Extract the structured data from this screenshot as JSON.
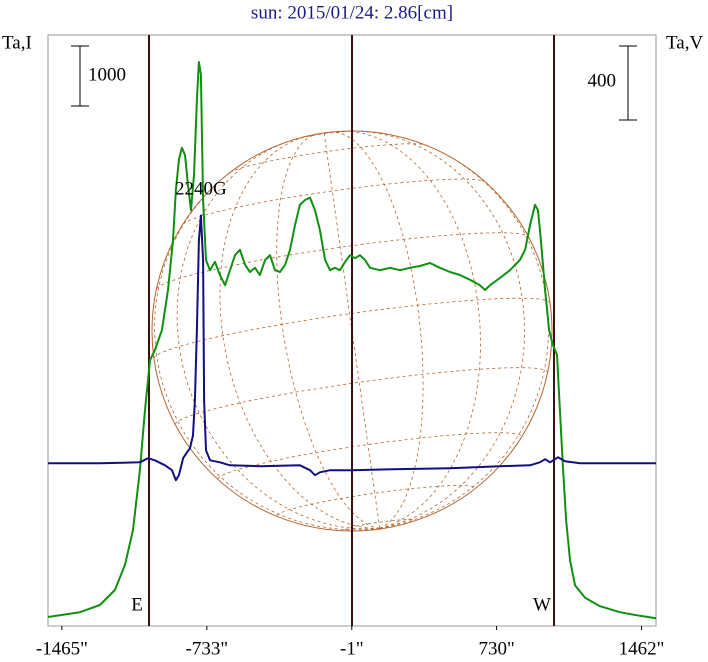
{
  "chart_data": {
    "type": "line",
    "title": "sun: 2015/01/24: 2.86[cm]",
    "y_label": "Ta,I",
    "y2_label": "Ta,V",
    "xlim": [
      -1535,
      1535
    ],
    "xticks": [
      {
        "value": -1465,
        "label": "-1465\""
      },
      {
        "value": -733,
        "label": "-733\""
      },
      {
        "value": -1,
        "label": "-1\""
      },
      {
        "value": 730,
        "label": "730\""
      },
      {
        "value": 1462,
        "label": "1462\""
      }
    ],
    "ylim": [
      0,
      9850
    ],
    "y2lim": [
      -880,
      2315
    ],
    "scale_bars": [
      {
        "value": 1000,
        "axis": "y"
      },
      {
        "value": 400,
        "axis": "y2"
      }
    ],
    "limb_markers": [
      {
        "x": -1025,
        "label": "E"
      },
      {
        "x": 0
      },
      {
        "x": 1020,
        "label": "W"
      }
    ],
    "annotations": [
      {
        "text": "2240G",
        "x": -763
      }
    ],
    "series": [
      {
        "color": "#109010",
        "axis": "y",
        "x": [
          -1535,
          -1374,
          -1273,
          -1197,
          -1146,
          -1106,
          -1071,
          -1045,
          -1020,
          -995,
          -960,
          -929,
          -904,
          -889,
          -874,
          -859,
          -843,
          -828,
          -813,
          -798,
          -783,
          -773,
          -763,
          -752,
          -737,
          -717,
          -692,
          -667,
          -641,
          -616,
          -591,
          -566,
          -540,
          -515,
          -490,
          -465,
          -439,
          -414,
          -389,
          -364,
          -338,
          -313,
          -288,
          -263,
          -237,
          -212,
          -187,
          -162,
          -136,
          -111,
          -86,
          -61,
          -35,
          -10,
          15,
          40,
          66,
          91,
          141,
          192,
          242,
          293,
          343,
          394,
          444,
          495,
          545,
          596,
          646,
          672,
          697,
          747,
          798,
          848,
          874,
          899,
          924,
          939,
          954,
          975,
          995,
          1015,
          1035,
          1050,
          1066,
          1081,
          1101,
          1126,
          1177,
          1252,
          1353,
          1454,
          1535
        ],
        "values": [
          150,
          230,
          350,
          600,
          1020,
          1600,
          2600,
          3600,
          4430,
          4600,
          4930,
          5600,
          6430,
          7270,
          7770,
          7970,
          7850,
          7350,
          6930,
          7520,
          8770,
          9400,
          9190,
          7100,
          6100,
          5930,
          6070,
          5850,
          5680,
          5930,
          6180,
          6270,
          6020,
          5900,
          5970,
          5850,
          6100,
          6180,
          5930,
          5900,
          6020,
          6270,
          6680,
          7020,
          7100,
          7140,
          6930,
          6600,
          6100,
          5930,
          5970,
          5930,
          6070,
          6180,
          6130,
          6180,
          6100,
          5970,
          5930,
          5970,
          5930,
          5970,
          6000,
          6050,
          5970,
          5900,
          5850,
          5770,
          5680,
          5600,
          5680,
          5800,
          5930,
          6100,
          6270,
          6680,
          7020,
          6930,
          6430,
          5600,
          4930,
          4680,
          4520,
          3600,
          2600,
          1770,
          1100,
          680,
          470,
          330,
          230,
          170,
          130
        ]
      },
      {
        "color": "#101080",
        "axis": "y2",
        "x": [
          -1535,
          -1273,
          -1071,
          -1030,
          -995,
          -944,
          -909,
          -889,
          -874,
          -853,
          -833,
          -818,
          -803,
          -793,
          -783,
          -773,
          -763,
          -752,
          -747,
          -737,
          -717,
          -667,
          -616,
          -465,
          -263,
          -212,
          -187,
          -162,
          -111,
          0,
          242,
          495,
          747,
          899,
          949,
          975,
          1000,
          1040,
          1076,
          1151,
          1535
        ],
        "values": [
          0,
          0,
          5,
          27,
          16,
          -11,
          -38,
          -92,
          -65,
          27,
          59,
          81,
          151,
          340,
          718,
          1204,
          1339,
          1096,
          340,
          70,
          16,
          5,
          -11,
          -16,
          -11,
          -38,
          -65,
          -49,
          -38,
          -38,
          -32,
          -27,
          -16,
          -11,
          5,
          22,
          5,
          32,
          11,
          0,
          0
        ]
      }
    ]
  }
}
